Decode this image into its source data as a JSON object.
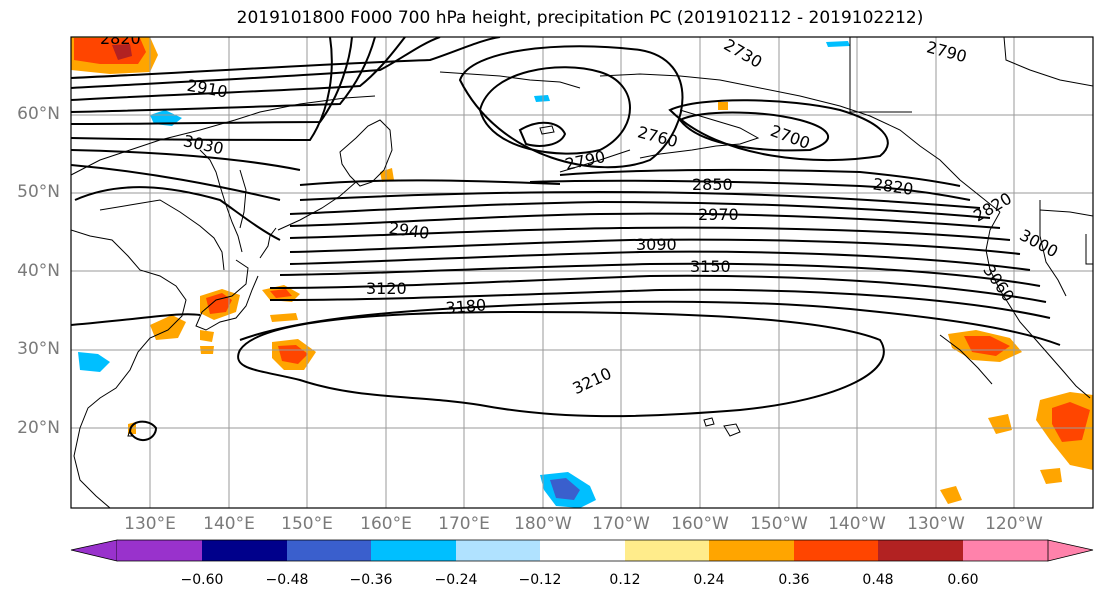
{
  "title": "2019101800 F000 700 hPa height, precipitation PC (2019102112 - 2019102212)",
  "lat_labels": [
    "60°N",
    "50°N",
    "40°N",
    "30°N",
    "20°N"
  ],
  "lon_labels": [
    "130°E",
    "140°E",
    "150°E",
    "160°E",
    "170°E",
    "180°W",
    "170°W",
    "160°W",
    "150°W",
    "140°W",
    "130°W",
    "120°W"
  ],
  "colorbar": {
    "ticks": [
      "−0.60",
      "−0.48",
      "−0.36",
      "−0.24",
      "−0.12",
      "0.12",
      "0.24",
      "0.36",
      "0.48",
      "0.60"
    ],
    "colors": [
      "#9932cc",
      "#00008b",
      "#3a5fcd",
      "#00bfff",
      "#b0e2ff",
      "#ffffff",
      "#ffec8b",
      "#ffa500",
      "#ff4500",
      "#b22222",
      "#ff82ab"
    ]
  },
  "contour_labels": [
    "2820",
    "2730",
    "2790",
    "2910",
    "3030",
    "2760",
    "2700",
    "2790",
    "2850",
    "2820",
    "2820",
    "2970",
    "2940",
    "3000",
    "3090",
    "3060",
    "3150",
    "3120",
    "3180",
    "3210"
  ]
}
